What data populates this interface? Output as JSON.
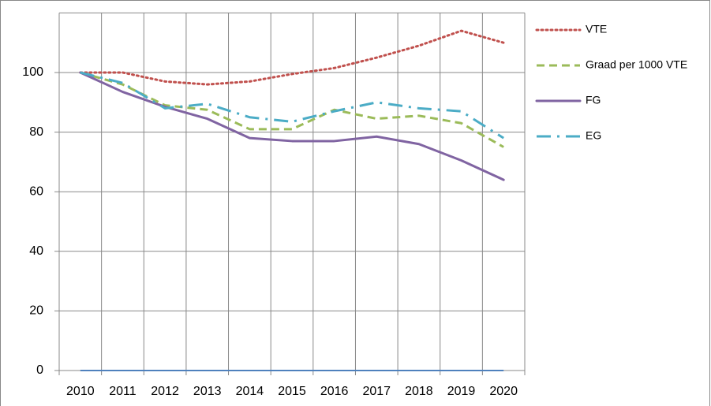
{
  "chart_data": {
    "type": "line",
    "categories": [
      "2010",
      "2011",
      "2012",
      "2013",
      "2014",
      "2015",
      "2016",
      "2017",
      "2018",
      "2019",
      "2020"
    ],
    "series": [
      {
        "name": "VTE",
        "color": "#c0504d",
        "style": "dotted",
        "values": [
          100,
          100,
          97,
          96,
          97,
          99.5,
          101.5,
          105,
          109,
          114,
          110
        ]
      },
      {
        "name": "Graad per 1000 VTE",
        "color": "#9bbb59",
        "style": "dashed",
        "values": [
          100,
          96,
          89,
          87.5,
          81,
          81,
          87.5,
          84.5,
          85.5,
          83,
          75
        ]
      },
      {
        "name": "FG",
        "color": "#8064a2",
        "style": "solid",
        "values": [
          100,
          93.5,
          88.5,
          84.5,
          78,
          77,
          77,
          78.5,
          76,
          70.5,
          64
        ]
      },
      {
        "name": "EG",
        "color": "#4bacc6",
        "style": "dashdot",
        "values": [
          100,
          96.5,
          88,
          89.5,
          85,
          83.5,
          87,
          90,
          88,
          87,
          78
        ]
      }
    ],
    "ylim": [
      0,
      120
    ],
    "yticks": [
      0,
      20,
      40,
      60,
      80,
      100
    ],
    "grid": true,
    "legend": "right"
  }
}
